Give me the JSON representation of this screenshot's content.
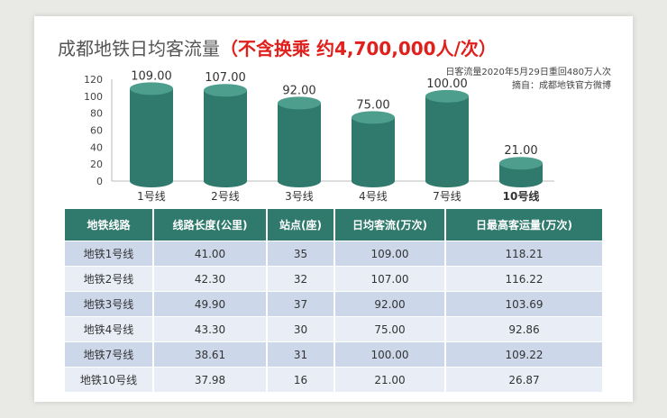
{
  "title": {
    "prefix": "成都地铁日均客流量",
    "highlight": "（不含换乘  约4,700,000人/次）"
  },
  "note": {
    "line1": "日客流量2020年5月29日重回480万人次",
    "line2": "摘自：成都地铁官方微博"
  },
  "chart_data": {
    "type": "bar",
    "categories": [
      "1号线",
      "2号线",
      "3号线",
      "4号线",
      "7号线",
      "10号线"
    ],
    "values": [
      109,
      107,
      92,
      75,
      100,
      21
    ],
    "value_labels": [
      "109.00",
      "107.00",
      "92.00",
      "75.00",
      "100.00",
      "21.00"
    ],
    "yticks": [
      "0",
      "20",
      "40",
      "60",
      "80",
      "100",
      "120"
    ],
    "ylim": [
      0,
      120
    ],
    "bar_color": "#2f7a6c",
    "bar_top_color": "#4e9e8e"
  },
  "table": {
    "headers": [
      "地铁线路",
      "线路长度(公里)",
      "站点(座)",
      "日均客流(万次)",
      "日最高客运量(万次)"
    ],
    "rows": [
      [
        "地铁1号线",
        "41.00",
        "35",
        "109.00",
        "118.21"
      ],
      [
        "地铁2号线",
        "42.30",
        "32",
        "107.00",
        "116.22"
      ],
      [
        "地铁3号线",
        "49.90",
        "37",
        "92.00",
        "103.69"
      ],
      [
        "地铁4号线",
        "43.30",
        "30",
        "75.00",
        "92.86"
      ],
      [
        "地铁7号线",
        "38.61",
        "31",
        "100.00",
        "109.22"
      ],
      [
        "地铁10号线",
        "37.98",
        "16",
        "21.00",
        "26.87"
      ]
    ]
  }
}
